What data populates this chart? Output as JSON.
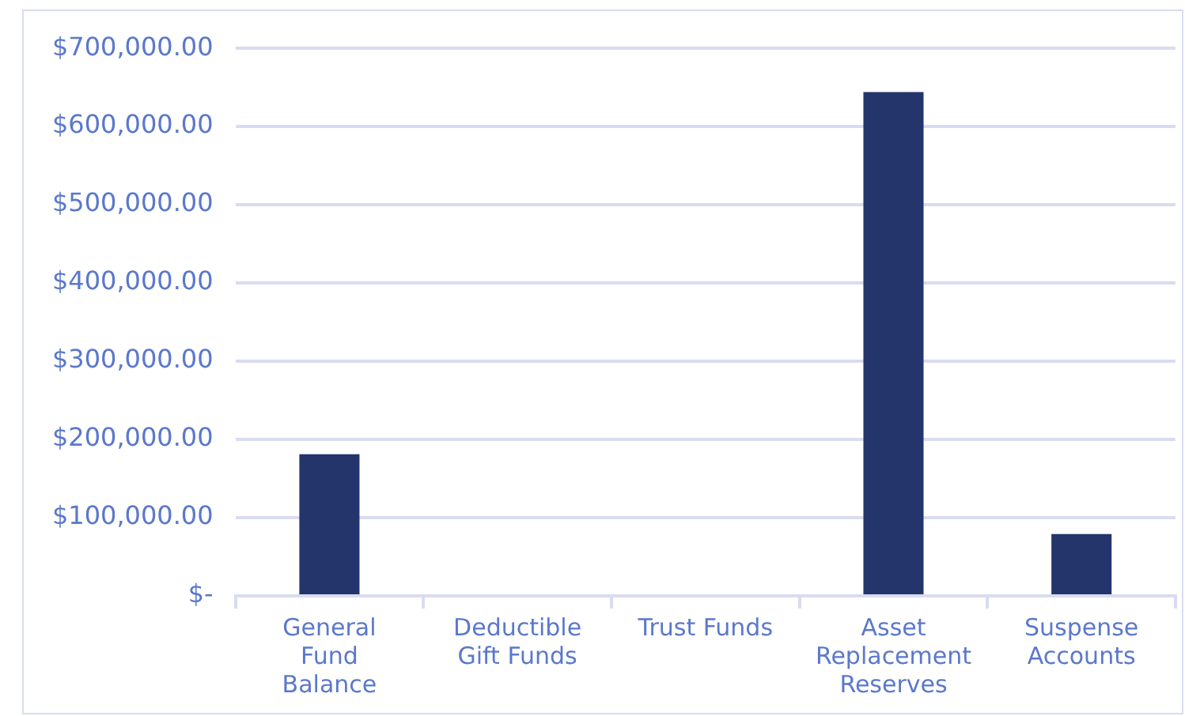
{
  "chart_data": {
    "type": "bar",
    "categories": [
      "General Fund Balance",
      "Deductible Gift Funds",
      "Trust Funds",
      "Asset Replacement Reserves",
      "Suspense Accounts"
    ],
    "values": [
      181000,
      0,
      0,
      644000,
      79000
    ],
    "color": "#23356b",
    "ylim": [
      0,
      700000
    ],
    "yticks": [
      {
        "value": 0,
        "label": "$-"
      },
      {
        "value": 100000,
        "label": "$100,000.00"
      },
      {
        "value": 200000,
        "label": "$200,000.00"
      },
      {
        "value": 300000,
        "label": "$300,000.00"
      },
      {
        "value": 400000,
        "label": "$400,000.00"
      },
      {
        "value": 500000,
        "label": "$500,000.00"
      },
      {
        "value": 600000,
        "label": "$600,000.00"
      },
      {
        "value": 700000,
        "label": "$700,000.00"
      }
    ],
    "grid": "y",
    "legend": false
  }
}
